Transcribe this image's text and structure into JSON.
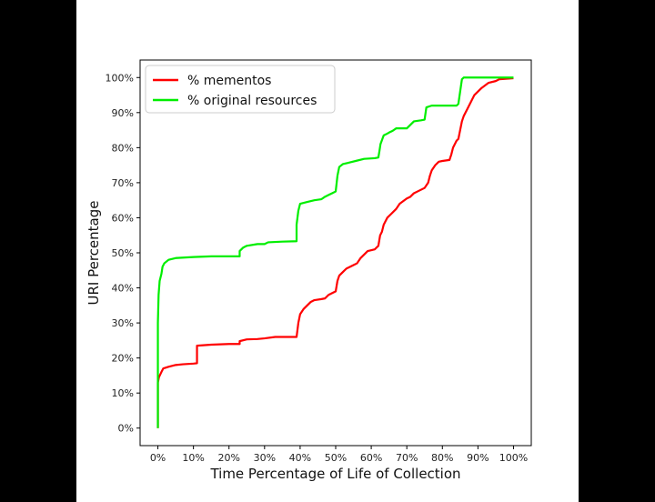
{
  "chart_data": {
    "type": "line",
    "title": "",
    "xlabel": "Time Percentage of Life of Collection",
    "ylabel": "URI Percentage",
    "xlim": [
      -5,
      105
    ],
    "ylim": [
      -5,
      105
    ],
    "x_ticks": [
      0,
      10,
      20,
      30,
      40,
      50,
      60,
      70,
      80,
      90,
      100
    ],
    "x_tick_labels": [
      "0%",
      "10%",
      "20%",
      "30%",
      "40%",
      "50%",
      "60%",
      "70%",
      "80%",
      "90%",
      "100%"
    ],
    "y_ticks": [
      0,
      10,
      20,
      30,
      40,
      50,
      60,
      70,
      80,
      90,
      100
    ],
    "y_tick_labels": [
      "0%",
      "10%",
      "20%",
      "30%",
      "40%",
      "50%",
      "60%",
      "70%",
      "80%",
      "90%",
      "100%"
    ],
    "grid": false,
    "legend_position": "top-left",
    "series": [
      {
        "name": "% mementos",
        "color": "#ff0000",
        "points": [
          [
            0,
            0
          ],
          [
            0,
            13
          ],
          [
            0.3,
            14.5
          ],
          [
            1,
            16
          ],
          [
            1.5,
            17
          ],
          [
            3,
            17.5
          ],
          [
            5,
            18
          ],
          [
            7,
            18.2
          ],
          [
            10,
            18.4
          ],
          [
            11,
            18.5
          ],
          [
            11,
            23.5
          ],
          [
            15,
            23.8
          ],
          [
            20,
            24
          ],
          [
            23,
            24
          ],
          [
            23,
            24.8
          ],
          [
            25,
            25.3
          ],
          [
            28,
            25.4
          ],
          [
            30,
            25.6
          ],
          [
            33,
            26
          ],
          [
            39,
            26
          ],
          [
            39.5,
            30
          ],
          [
            40,
            32.5
          ],
          [
            41,
            34
          ],
          [
            42,
            35
          ],
          [
            43,
            36
          ],
          [
            44,
            36.5
          ],
          [
            46,
            36.8
          ],
          [
            47,
            37
          ],
          [
            48,
            38
          ],
          [
            50,
            39
          ],
          [
            50.5,
            42
          ],
          [
            51,
            43.5
          ],
          [
            52,
            44.5
          ],
          [
            53,
            45.5
          ],
          [
            55,
            46.5
          ],
          [
            56,
            47
          ],
          [
            57,
            48.5
          ],
          [
            58,
            49.5
          ],
          [
            59,
            50.5
          ],
          [
            61,
            51
          ],
          [
            62,
            52
          ],
          [
            62.5,
            55
          ],
          [
            63,
            56
          ],
          [
            63.5,
            58
          ],
          [
            64.5,
            60
          ],
          [
            65.5,
            61
          ],
          [
            67,
            62.5
          ],
          [
            68,
            64
          ],
          [
            70,
            65.5
          ],
          [
            71,
            66
          ],
          [
            72,
            67
          ],
          [
            73,
            67.5
          ],
          [
            75,
            68.5
          ],
          [
            76,
            70
          ],
          [
            76.5,
            72
          ],
          [
            77,
            73.5
          ],
          [
            78,
            75
          ],
          [
            79,
            76
          ],
          [
            80,
            76.2
          ],
          [
            82,
            76.5
          ],
          [
            82.5,
            78
          ],
          [
            83,
            80
          ],
          [
            84,
            82
          ],
          [
            84.5,
            82.5
          ],
          [
            85,
            85
          ],
          [
            85.5,
            87.5
          ],
          [
            86,
            89
          ],
          [
            87,
            91
          ],
          [
            87.5,
            92
          ],
          [
            88,
            93
          ],
          [
            89,
            95
          ],
          [
            91,
            97
          ],
          [
            93,
            98.5
          ],
          [
            95,
            99
          ],
          [
            96,
            99.5
          ],
          [
            100,
            99.8
          ]
        ]
      },
      {
        "name": "% original resources",
        "color": "#00ee00",
        "points": [
          [
            0,
            0
          ],
          [
            0,
            30
          ],
          [
            0.2,
            38
          ],
          [
            0.5,
            42
          ],
          [
            1,
            44
          ],
          [
            1.3,
            46
          ],
          [
            1.8,
            47
          ],
          [
            3,
            48
          ],
          [
            5,
            48.5
          ],
          [
            10,
            48.8
          ],
          [
            15,
            49
          ],
          [
            20,
            49
          ],
          [
            23,
            49
          ],
          [
            23,
            50.5
          ],
          [
            24,
            51.5
          ],
          [
            25,
            52
          ],
          [
            28,
            52.5
          ],
          [
            30,
            52.5
          ],
          [
            31,
            53
          ],
          [
            35,
            53.2
          ],
          [
            39,
            53.3
          ],
          [
            39,
            58
          ],
          [
            39.5,
            62
          ],
          [
            40,
            64
          ],
          [
            42,
            64.5
          ],
          [
            44,
            65
          ],
          [
            46,
            65.3
          ],
          [
            47,
            66
          ],
          [
            48,
            66.5
          ],
          [
            49,
            67
          ],
          [
            50,
            67.5
          ],
          [
            50.5,
            72
          ],
          [
            51,
            74.5
          ],
          [
            52,
            75.3
          ],
          [
            54,
            75.8
          ],
          [
            56,
            76.3
          ],
          [
            58,
            76.8
          ],
          [
            61,
            77
          ],
          [
            62,
            77.2
          ],
          [
            62.3,
            79
          ],
          [
            62.6,
            81
          ],
          [
            63.5,
            83.5
          ],
          [
            64.5,
            84
          ],
          [
            65,
            84.3
          ],
          [
            66,
            84.8
          ],
          [
            67,
            85.5
          ],
          [
            70,
            85.5
          ],
          [
            71,
            86.5
          ],
          [
            72,
            87.5
          ],
          [
            74,
            87.8
          ],
          [
            75,
            88
          ],
          [
            75.5,
            91.5
          ],
          [
            77,
            92
          ],
          [
            80,
            92
          ],
          [
            84,
            92
          ],
          [
            84.5,
            92.5
          ],
          [
            85,
            96
          ],
          [
            85.5,
            99.5
          ],
          [
            86,
            100
          ],
          [
            90,
            100
          ],
          [
            95,
            100
          ],
          [
            100,
            100
          ]
        ]
      }
    ]
  }
}
